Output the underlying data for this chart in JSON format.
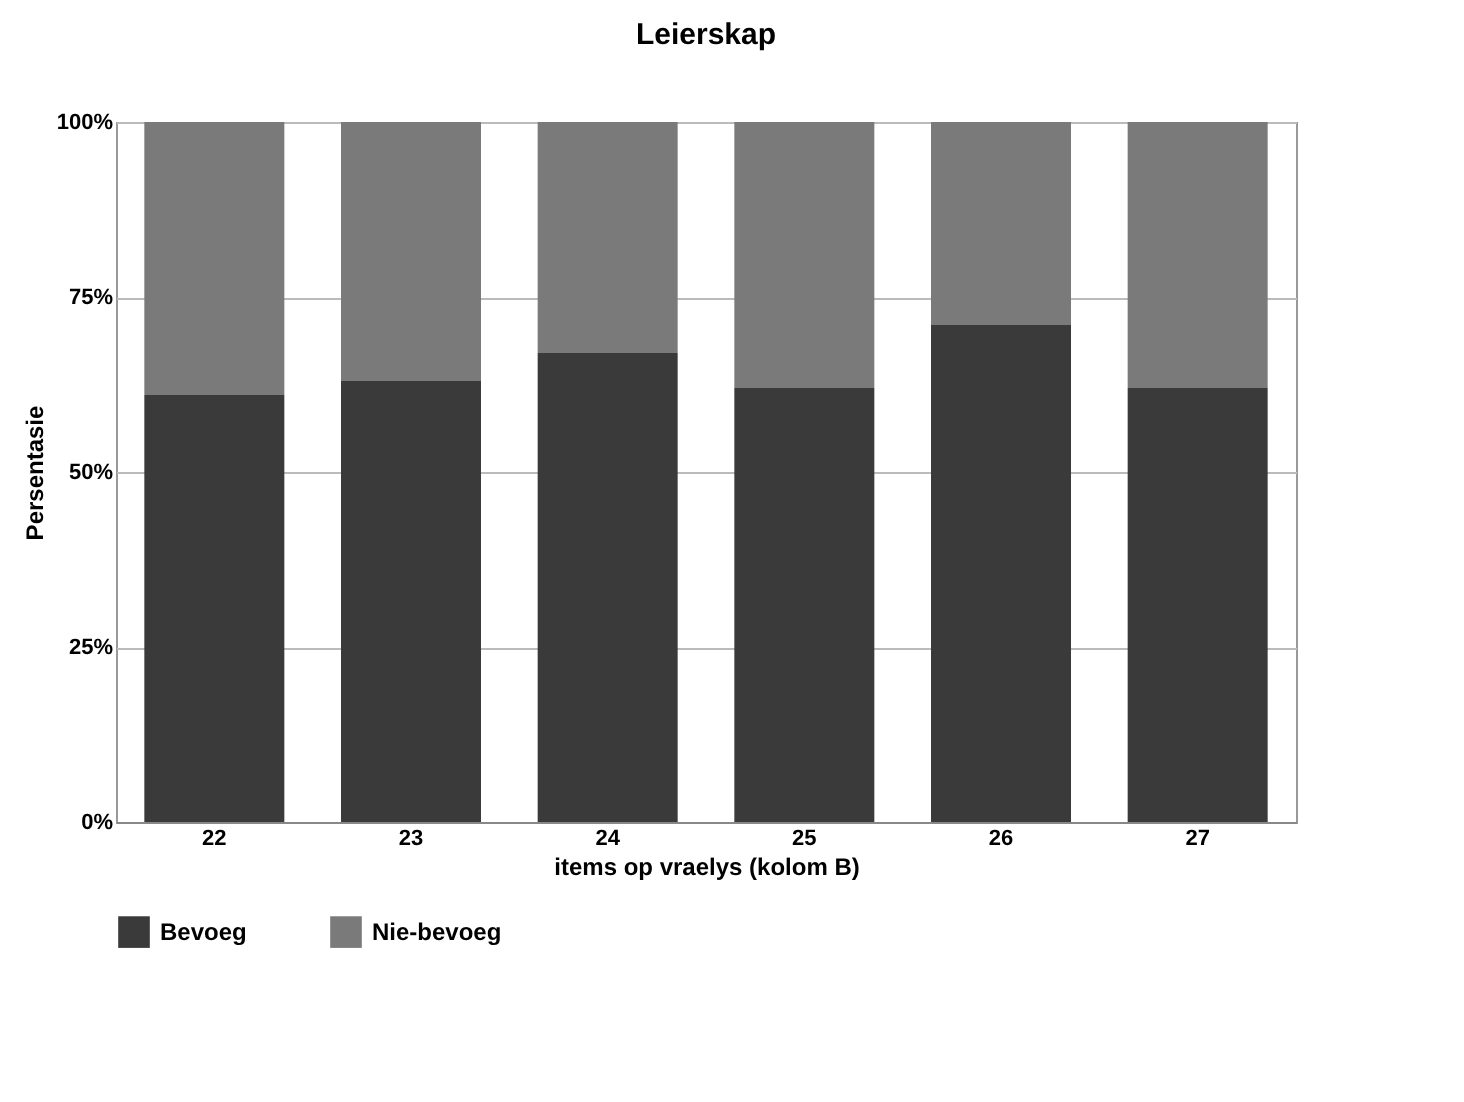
{
  "chart_data": {
    "type": "bar",
    "title": "Leierskap",
    "xlabel": "items op vraelys (kolom B)",
    "ylabel": "Persentasie",
    "categories": [
      "22",
      "23",
      "24",
      "25",
      "26",
      "27"
    ],
    "stacked": true,
    "series": [
      {
        "name": "Bevoeg",
        "color": "#3a3a3a",
        "values": [
          61,
          63,
          67,
          62,
          71,
          62
        ]
      },
      {
        "name": "Nie-bevoeg",
        "color": "#7a7a7a",
        "values": [
          39,
          37,
          33,
          38,
          29,
          38
        ]
      }
    ],
    "ylim": [
      0,
      100
    ],
    "yticks": [
      {
        "value": 0,
        "label": "0%"
      },
      {
        "value": 25,
        "label": "25%"
      },
      {
        "value": 50,
        "label": "50%"
      },
      {
        "value": 75,
        "label": "75%"
      },
      {
        "value": 100,
        "label": "100%"
      }
    ],
    "grid": "y",
    "legend": "bottom"
  }
}
